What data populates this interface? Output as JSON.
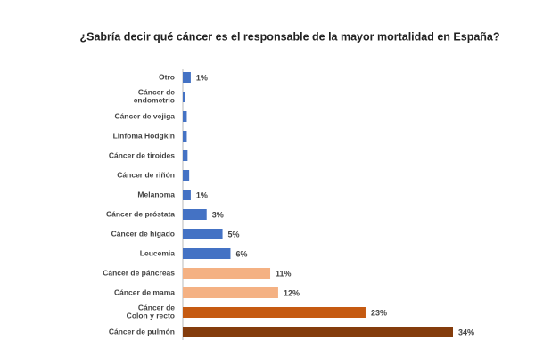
{
  "chart_data": {
    "type": "barh",
    "title": "¿Sabría decir qué cáncer es el responsable de la mayor mortalidad en España?",
    "categories": [
      "Otro",
      "Cáncer de endometrio",
      "Cáncer de vejiga",
      "Linfoma Hodgkin",
      "Cáncer de tiroides",
      "Cáncer de riñón",
      "Melanoma",
      "Cáncer de próstata",
      "Cáncer de hígado",
      "Leucemia",
      "Cáncer de páncreas",
      "Cáncer de mama",
      "Cáncer de Colon y recto",
      "Cáncer de pulmón"
    ],
    "values": [
      1,
      0.3,
      0.5,
      0.5,
      0.6,
      0.8,
      1,
      3,
      5,
      6,
      11,
      12,
      23,
      34
    ],
    "value_labels": [
      "1%",
      null,
      null,
      null,
      null,
      null,
      "1%",
      "3%",
      "5%",
      "6%",
      "11%",
      "12%",
      "23%",
      "34%"
    ],
    "colors": [
      "#4472c4",
      "#4472c4",
      "#4472c4",
      "#4472c4",
      "#4472c4",
      "#4472c4",
      "#4472c4",
      "#4472c4",
      "#4472c4",
      "#4472c4",
      "#f4b183",
      "#f4b183",
      "#c55a11",
      "#843c0c"
    ]
  }
}
